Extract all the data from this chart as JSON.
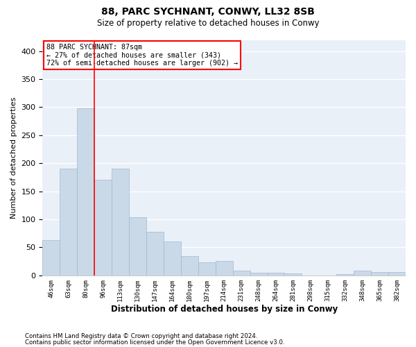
{
  "title1": "88, PARC SYCHNANT, CONWY, LL32 8SB",
  "title2": "Size of property relative to detached houses in Conwy",
  "xlabel": "Distribution of detached houses by size in Conwy",
  "ylabel": "Number of detached properties",
  "categories": [
    "46sqm",
    "63sqm",
    "80sqm",
    "96sqm",
    "113sqm",
    "130sqm",
    "147sqm",
    "164sqm",
    "180sqm",
    "197sqm",
    "214sqm",
    "231sqm",
    "248sqm",
    "264sqm",
    "281sqm",
    "298sqm",
    "315sqm",
    "332sqm",
    "348sqm",
    "365sqm",
    "382sqm"
  ],
  "values": [
    63,
    190,
    298,
    170,
    190,
    104,
    78,
    61,
    34,
    23,
    26,
    8,
    5,
    5,
    3,
    0,
    0,
    2,
    8,
    6,
    6
  ],
  "bar_color": "#c9d9e8",
  "bar_edgecolor": "#a0b8d0",
  "vline_color": "red",
  "annotation_title": "88 PARC SYCHNANT: 87sqm",
  "annotation_line2": "← 27% of detached houses are smaller (343)",
  "annotation_line3": "72% of semi-detached houses are larger (902) →",
  "annotation_box_color": "white",
  "annotation_edgecolor": "red",
  "footer1": "Contains HM Land Registry data © Crown copyright and database right 2024.",
  "footer2": "Contains public sector information licensed under the Open Government Licence v3.0.",
  "bg_color": "#eaf0f8",
  "ylim": [
    0,
    420
  ],
  "property_sqm": 87
}
